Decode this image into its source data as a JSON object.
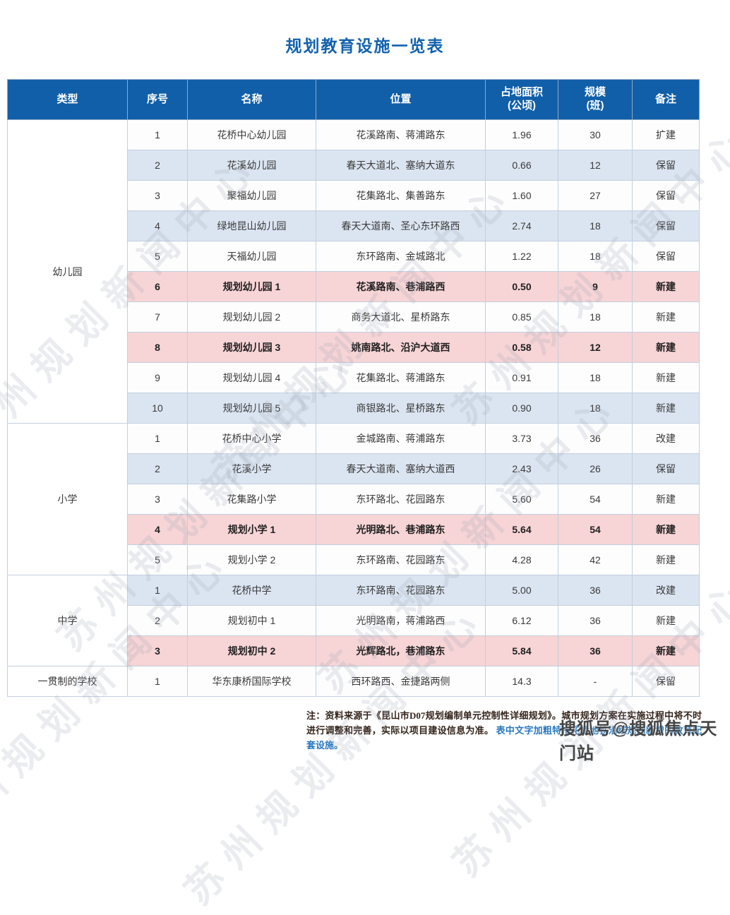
{
  "page": {
    "title": "规划教育设施一览表"
  },
  "watermarks": {
    "diagonal_text": "苏州规划新闻中心",
    "sohu_badge": "搜狐号@搜狐焦点天门站"
  },
  "table": {
    "headers": {
      "type": "类型",
      "no": "序号",
      "name": "名称",
      "location": "位置",
      "area": "占地面积\n(公顷)",
      "scale": "规模\n(班)",
      "remark": "备注"
    },
    "groups": [
      {
        "type": "幼儿园",
        "rows": [
          {
            "no": "1",
            "name": "花桥中心幼儿园",
            "location": "花溪路南、蒋浦路东",
            "area": "1.96",
            "scale": "30",
            "remark": "扩建",
            "variant": "white"
          },
          {
            "no": "2",
            "name": "花溪幼儿园",
            "location": "春天大道北、塞纳大道东",
            "area": "0.66",
            "scale": "12",
            "remark": "保留",
            "variant": "blue"
          },
          {
            "no": "3",
            "name": "聚福幼儿园",
            "location": "花集路北、集善路东",
            "area": "1.60",
            "scale": "27",
            "remark": "保留",
            "variant": "white"
          },
          {
            "no": "4",
            "name": "绿地昆山幼儿园",
            "location": "春天大道南、圣心东环路西",
            "area": "2.74",
            "scale": "18",
            "remark": "保留",
            "variant": "blue"
          },
          {
            "no": "5",
            "name": "天福幼儿园",
            "location": "东环路南、金城路北",
            "area": "1.22",
            "scale": "18",
            "remark": "保留",
            "variant": "white"
          },
          {
            "no": "6",
            "name": "规划幼儿园 1",
            "location": "花溪路南、巷浦路西",
            "area": "0.50",
            "scale": "9",
            "remark": "新建",
            "variant": "pink"
          },
          {
            "no": "7",
            "name": "规划幼儿园 2",
            "location": "商务大道北、星桥路东",
            "area": "0.85",
            "scale": "18",
            "remark": "新建",
            "variant": "white"
          },
          {
            "no": "8",
            "name": "规划幼儿园 3",
            "location": "姚南路北、沿沪大道西",
            "area": "0.58",
            "scale": "12",
            "remark": "新建",
            "variant": "pink"
          },
          {
            "no": "9",
            "name": "规划幼儿园 4",
            "location": "花集路北、蒋浦路东",
            "area": "0.91",
            "scale": "18",
            "remark": "新建",
            "variant": "white"
          },
          {
            "no": "10",
            "name": "规划幼儿园 5",
            "location": "商银路北、星桥路东",
            "area": "0.90",
            "scale": "18",
            "remark": "新建",
            "variant": "blue"
          }
        ]
      },
      {
        "type": "小学",
        "rows": [
          {
            "no": "1",
            "name": "花桥中心小学",
            "location": "金城路南、蒋浦路东",
            "area": "3.73",
            "scale": "36",
            "remark": "改建",
            "variant": "white"
          },
          {
            "no": "2",
            "name": "花溪小学",
            "location": "春天大道南、塞纳大道西",
            "area": "2.43",
            "scale": "26",
            "remark": "保留",
            "variant": "blue"
          },
          {
            "no": "3",
            "name": "花集路小学",
            "location": "东环路北、花园路东",
            "area": "5.60",
            "scale": "54",
            "remark": "新建",
            "variant": "white"
          },
          {
            "no": "4",
            "name": "规划小学 1",
            "location": "光明路北、巷浦路东",
            "area": "5.64",
            "scale": "54",
            "remark": "新建",
            "variant": "pink"
          },
          {
            "no": "5",
            "name": "规划小学 2",
            "location": "东环路南、花园路东",
            "area": "4.28",
            "scale": "42",
            "remark": "新建",
            "variant": "white"
          }
        ]
      },
      {
        "type": "中学",
        "rows": [
          {
            "no": "1",
            "name": "花桥中学",
            "location": "东环路南、花园路东",
            "area": "5.00",
            "scale": "36",
            "remark": "改建",
            "variant": "blue"
          },
          {
            "no": "2",
            "name": "规划初中 1",
            "location": "光明路南，蒋浦路西",
            "area": "6.12",
            "scale": "36",
            "remark": "新建",
            "variant": "white"
          },
          {
            "no": "3",
            "name": "规划初中 2",
            "location": "光辉路北，巷浦路东",
            "area": "5.84",
            "scale": "36",
            "remark": "新建",
            "variant": "pink"
          }
        ]
      },
      {
        "type": "一贯制的学校",
        "rows": [
          {
            "no": "1",
            "name": "华东康桥国际学校",
            "location": "西环路西、金捷路两侧",
            "area": "14.3",
            "scale": "-",
            "remark": "保留",
            "variant": "white"
          }
        ]
      }
    ]
  },
  "footnote": {
    "dark_text": "注：资料来源于《昆山市D07规划编制单元控制性详细规划》。城市规划方案在实施过程中将不时进行调整和完善，实际以项目建设信息为准。",
    "blue_text": "表中文字加粗特指花桥地铁沿线规划新增的教育配套设施。"
  },
  "colors": {
    "header_bg": "#115fa9",
    "row_alt": "#dbe5f1",
    "row_highlight": "#f7d4d6",
    "title_accent": "#1262ae",
    "note_link": "#2878be"
  }
}
